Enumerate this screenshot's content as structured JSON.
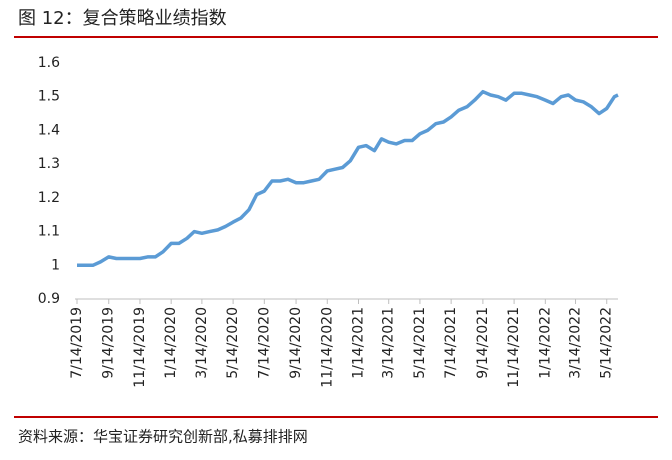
{
  "chart_data": {
    "type": "line",
    "title": "图 12：复合策略业绩指数",
    "source": "资料来源：华宝证券研究创新部,私募排排网",
    "x": [
      "7/14/2019",
      "7/29/2019",
      "8/14/2019",
      "8/29/2019",
      "9/14/2019",
      "9/29/2019",
      "10/14/2019",
      "10/29/2019",
      "11/14/2019",
      "11/29/2019",
      "12/14/2019",
      "12/29/2019",
      "1/14/2020",
      "1/29/2020",
      "2/14/2020",
      "2/28/2020",
      "3/14/2020",
      "3/29/2020",
      "4/14/2020",
      "4/29/2020",
      "5/14/2020",
      "5/29/2020",
      "6/14/2020",
      "6/29/2020",
      "7/14/2020",
      "7/29/2020",
      "8/14/2020",
      "8/29/2020",
      "9/14/2020",
      "9/29/2020",
      "10/14/2020",
      "10/29/2020",
      "11/14/2020",
      "11/29/2020",
      "12/14/2020",
      "12/29/2020",
      "1/14/2021",
      "1/29/2021",
      "2/14/2021",
      "2/28/2021",
      "3/14/2021",
      "3/29/2021",
      "4/14/2021",
      "4/29/2021",
      "5/14/2021",
      "5/29/2021",
      "6/14/2021",
      "6/29/2021",
      "7/14/2021",
      "7/29/2021",
      "8/14/2021",
      "8/29/2021",
      "9/14/2021",
      "9/29/2021",
      "10/14/2021",
      "10/29/2021",
      "11/14/2021",
      "11/29/2021",
      "12/14/2021",
      "12/29/2021",
      "1/14/2022",
      "1/29/2022",
      "2/14/2022",
      "2/28/2022",
      "3/14/2022",
      "3/29/2022",
      "4/14/2022",
      "4/29/2022",
      "5/14/2022",
      "5/29/2022",
      "6/5/2022"
    ],
    "series": [
      {
        "name": "复合策略业绩指数",
        "color": "#5b9bd5",
        "values": [
          1.0,
          1.0,
          1.0,
          1.01,
          1.025,
          1.02,
          1.02,
          1.02,
          1.02,
          1.025,
          1.025,
          1.04,
          1.065,
          1.065,
          1.08,
          1.1,
          1.095,
          1.1,
          1.105,
          1.115,
          1.128,
          1.14,
          1.165,
          1.21,
          1.22,
          1.25,
          1.25,
          1.255,
          1.245,
          1.245,
          1.25,
          1.255,
          1.28,
          1.285,
          1.29,
          1.31,
          1.35,
          1.355,
          1.34,
          1.375,
          1.365,
          1.36,
          1.37,
          1.37,
          1.39,
          1.4,
          1.42,
          1.425,
          1.44,
          1.46,
          1.47,
          1.49,
          1.515,
          1.505,
          1.5,
          1.49,
          1.51,
          1.51,
          1.505,
          1.5,
          1.49,
          1.48,
          1.5,
          1.505,
          1.49,
          1.485,
          1.47,
          1.45,
          1.465,
          1.5,
          1.505
        ]
      }
    ],
    "xlim": [
      "7/14/2019",
      "6/5/2022"
    ],
    "xticks": [
      "7/14/2019",
      "9/14/2019",
      "11/14/2019",
      "1/14/2020",
      "3/14/2020",
      "5/14/2020",
      "7/14/2020",
      "9/14/2020",
      "11/14/2020",
      "1/14/2021",
      "3/14/2021",
      "5/14/2021",
      "7/14/2021",
      "9/14/2021",
      "11/14/2021",
      "1/14/2022",
      "3/14/2022",
      "5/14/2022"
    ],
    "ylim": [
      0.9,
      1.6
    ],
    "yticks": [
      0.9,
      1,
      1.1,
      1.2,
      1.3,
      1.4,
      1.5,
      1.6
    ]
  }
}
